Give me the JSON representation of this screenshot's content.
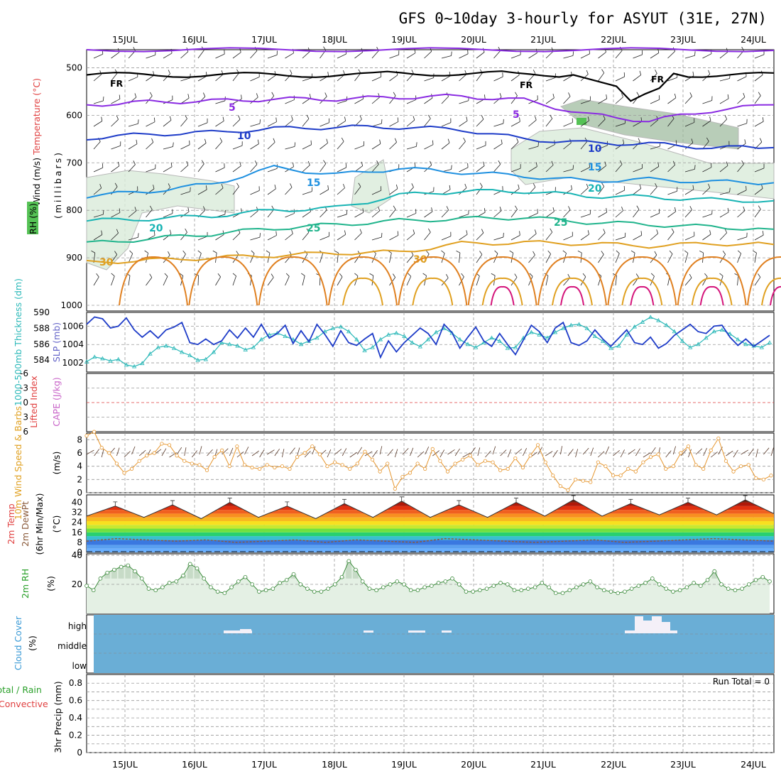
{
  "title": "GFS 0~10day 3-hourly for ASYUT (31E, 27N)",
  "dates": [
    "15JUL",
    "16JUL",
    "17JUL",
    "18JUL",
    "19JUL",
    "20JUL",
    "21JUL",
    "22JUL",
    "23JUL",
    "24JUL"
  ],
  "colors": {
    "grid": "#9a9a9a",
    "cloud": "#6aaed6",
    "wind_orange": "#e6962e",
    "slp": "#1e3cc8",
    "thick": "#2ab8b8",
    "rh": "#3a8a3a"
  },
  "chart_data": [
    {
      "type": "contour",
      "name": "upper-air",
      "labels": {
        "wind": "Wind (m/s)",
        "temp": "Temperature (°C)",
        "rh": "RH (%)",
        "units": "(millibars)"
      },
      "ylim": [
        1000,
        450
      ],
      "yticks": [
        500,
        600,
        700,
        800,
        900,
        1000
      ],
      "freezing_label": "FR",
      "isotherms": [
        {
          "label": "5",
          "color": "#8a2be2",
          "p": [
            578,
            572,
            570,
            566,
            566,
            562,
            560,
            568,
            598,
            612,
            590,
            578
          ]
        },
        {
          "label": "10",
          "color": "#1e3cc8",
          "p": [
            648,
            640,
            636,
            628,
            625,
            625,
            630,
            650,
            658,
            660,
            668,
            668
          ]
        },
        {
          "label": "15",
          "color": "#1e90e0",
          "p": [
            770,
            760,
            745,
            710,
            725,
            712,
            720,
            728,
            738,
            735,
            740,
            742
          ]
        },
        {
          "label": "20",
          "color": "#18b4b4",
          "p": [
            822,
            818,
            812,
            800,
            795,
            768,
            760,
            760,
            770,
            772,
            778,
            780
          ]
        },
        {
          "label": "25",
          "color": "#20b48c",
          "p": [
            870,
            860,
            850,
            838,
            830,
            822,
            818,
            815,
            825,
            830,
            835,
            840
          ]
        },
        {
          "label": "30",
          "color": "#e0a020",
          "p": [
            910,
            905,
            900,
            895,
            890,
            888,
            870,
            868,
            870,
            875,
            870,
            872
          ]
        }
      ],
      "contour_labels": [
        "5",
        "10",
        "15",
        "20",
        "25",
        "30"
      ]
    },
    {
      "type": "line",
      "name": "thickness-slp",
      "labels": {
        "thick": "1000-500mb Thickness (dm)",
        "slp": "SLP (mb)"
      },
      "thick_ticks": [
        584,
        586,
        588,
        590
      ],
      "slp_ticks": [
        1002,
        1004,
        1006
      ],
      "slp_ylim": [
        1001,
        1007.5
      ],
      "thick_ylim": [
        582.5,
        590
      ],
      "slp": [
        1006.2,
        1007.0,
        1006.8,
        1005.8,
        1006.0,
        1006.9,
        1005.6,
        1004.8,
        1005.5,
        1004.7,
        1005.6,
        1005.9,
        1006.4,
        1004.2,
        1004.0,
        1004.6,
        1004.0,
        1004.4,
        1005.6,
        1004.7,
        1005.8,
        1004.8,
        1006.2,
        1004.7,
        1005.2,
        1006.1,
        1004.1,
        1005.5,
        1004.3,
        1006.2,
        1005.1,
        1003.8,
        1005.5,
        1004.2,
        1003.9,
        1004.6,
        1005.2,
        1002.6,
        1004.4,
        1003.2,
        1004.2,
        1005.0,
        1005.8,
        1005.2,
        1004.0,
        1006.2,
        1005.3,
        1003.6,
        1004.8,
        1005.9,
        1004.4,
        1003.8,
        1005.2,
        1004.0,
        1002.9,
        1004.5,
        1006.1,
        1005.4,
        1004.2,
        1005.8,
        1006.4,
        1004.2,
        1003.9,
        1004.4,
        1005.6,
        1004.6,
        1003.8,
        1004.7,
        1005.6,
        1004.2,
        1004.0,
        1004.8,
        1003.6,
        1004.1,
        1005.0,
        1005.6,
        1006.2,
        1005.4,
        1005.2,
        1006.0,
        1006.1,
        1004.8,
        1003.9,
        1004.6,
        1003.8,
        1004.4,
        1005.0
      ],
      "thick": [
        583.8,
        584.4,
        584.2,
        583.9,
        584.1,
        583.4,
        583.2,
        583.6,
        584.8,
        585.6,
        585.8,
        585.5,
        585.0,
        584.6,
        584.0,
        584.1,
        585.0,
        586.2,
        586.0,
        585.8,
        585.3,
        585.6,
        586.6,
        587.2,
        587.4,
        587.0,
        586.6,
        586.0,
        586.4,
        586.8,
        587.6,
        588.0,
        588.2,
        587.6,
        586.6,
        585.2,
        585.6,
        586.6,
        587.2,
        587.4,
        587.0,
        586.2,
        585.7,
        586.6,
        587.5,
        588.0,
        587.4,
        586.6,
        586.0,
        585.6,
        586.2,
        586.8,
        586.4,
        585.5,
        585.6,
        586.8,
        587.5,
        587.2,
        586.8,
        587.5,
        588.0,
        588.4,
        588.5,
        588.0,
        587.0,
        586.4,
        585.5,
        585.8,
        587.2,
        588.2,
        588.8,
        589.4,
        589.0,
        588.4,
        587.6,
        586.4,
        585.6,
        586.0,
        586.8,
        587.6,
        587.8,
        587.3,
        586.6,
        586.0,
        585.8,
        585.6,
        586.2
      ]
    },
    {
      "type": "line",
      "name": "cape-li",
      "labels": {
        "li": "Lifted Index",
        "cape": "CAPE (J/kg)"
      },
      "li_ticks": [
        "-6",
        "-3",
        "0",
        "3",
        "6"
      ],
      "cape_values": "none"
    },
    {
      "type": "line",
      "name": "wind10m",
      "labels": {
        "main": "10m Wind Speed & Barbs",
        "units": "(m/s)"
      },
      "yticks": [
        0,
        2,
        4,
        6,
        8
      ],
      "ylim": [
        0,
        9
      ],
      "values": [
        8.6,
        9.2,
        6.8,
        6.0,
        4.4,
        3.0,
        3.6,
        4.8,
        5.6,
        6.0,
        7.4,
        7.2,
        5.6,
        4.8,
        4.4,
        4.2,
        3.4,
        5.4,
        6.4,
        4.0,
        7.0,
        4.2,
        3.8,
        3.6,
        4.2,
        3.8,
        4.0,
        3.6,
        5.4,
        6.0,
        7.0,
        5.8,
        4.0,
        4.6,
        4.2,
        3.6,
        4.4,
        6.2,
        5.0,
        3.2,
        4.4,
        0.6,
        2.4,
        3.0,
        4.4,
        3.6,
        6.6,
        4.8,
        3.2,
        4.4,
        5.0,
        5.6,
        4.2,
        4.8,
        4.6,
        3.4,
        3.6,
        5.2,
        3.8,
        5.6,
        7.2,
        4.6,
        2.6,
        1.0,
        0.4,
        2.0,
        1.8,
        1.6,
        4.6,
        4.0,
        2.6,
        2.6,
        3.6,
        3.2,
        4.6,
        5.4,
        5.8,
        3.6,
        4.0,
        6.0,
        7.0,
        4.2,
        3.6,
        6.4,
        8.2,
        4.8,
        3.2,
        4.0,
        4.2,
        2.2,
        2.0,
        2.6
      ]
    },
    {
      "type": "area",
      "name": "temp2m",
      "labels": {
        "a": "2m Temp",
        "b": "2m DewPt",
        "c": "(6hr Min/Max)",
        "units": "(°C)"
      },
      "yticks": [
        0,
        8,
        16,
        24,
        32,
        40
      ],
      "ylim": [
        0,
        46
      ],
      "tmax": [
        37,
        38,
        40,
        37,
        39,
        41,
        38,
        40,
        42,
        39,
        40,
        42
      ],
      "tmin": [
        29,
        28,
        27,
        28,
        27,
        28,
        28,
        28,
        29,
        29,
        30,
        30
      ],
      "dewpoint": [
        9,
        11,
        10,
        9,
        10,
        8,
        9,
        10,
        8,
        10,
        9,
        8,
        11,
        10,
        9,
        8,
        9,
        10,
        8,
        9,
        10,
        11,
        10,
        9
      ]
    },
    {
      "type": "area",
      "name": "rh2m",
      "labels": {
        "main": "2m RH",
        "units": "(%)"
      },
      "yticks": [
        20,
        40
      ],
      "ylim": [
        0,
        41
      ],
      "values": [
        19,
        16,
        24,
        28,
        30,
        32,
        33,
        29,
        24,
        17,
        16,
        18,
        21,
        22,
        26,
        34,
        31,
        24,
        18,
        15,
        14,
        18,
        22,
        25,
        20,
        15,
        16,
        17,
        21,
        23,
        27,
        20,
        17,
        15,
        15,
        17,
        20,
        25,
        36,
        30,
        22,
        17,
        16,
        18,
        20,
        22,
        20,
        16,
        16,
        18,
        19,
        21,
        22,
        24,
        20,
        15,
        15,
        16,
        17,
        19,
        21,
        20,
        16,
        16,
        17,
        18,
        21,
        18,
        14,
        14,
        16,
        18,
        20,
        22,
        18,
        16,
        15,
        14,
        15,
        17,
        19,
        21,
        24,
        20,
        17,
        15,
        16,
        18,
        21,
        19,
        23,
        29,
        20,
        17,
        16,
        17,
        20,
        23,
        25,
        22
      ]
    },
    {
      "type": "bar",
      "name": "cloud-cover",
      "labels": {
        "main": "Cloud Cover",
        "units": "(%)",
        "high": "high",
        "middle": "middle",
        "low": "low"
      }
    },
    {
      "type": "line",
      "name": "precip",
      "labels": {
        "a": "Total / Rain",
        "b": "Convective",
        "c": "3hr Precip (mm)",
        "run_total": "Run Total = 0"
      },
      "yticks": [
        "0",
        "0.2",
        "0.4",
        "0.6",
        "0.8"
      ],
      "ylim": [
        0,
        0.9
      ],
      "values": []
    }
  ]
}
